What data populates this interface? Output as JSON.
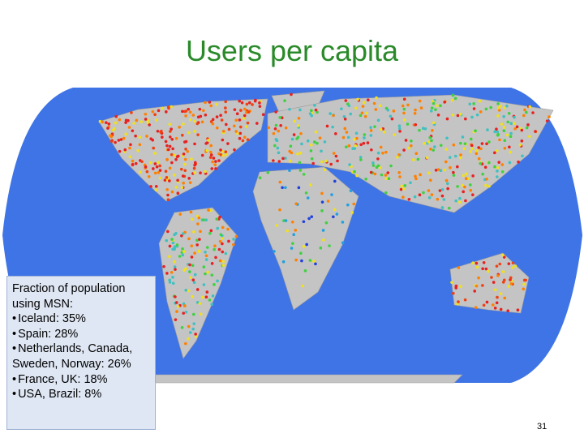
{
  "title": "Users per capita",
  "info_box": {
    "heading": "Fraction of population using MSN:",
    "items": [
      "Iceland: 35%",
      "Spain: 28%",
      "Netherlands, Canada, Sweden, Norway: 26%",
      "France, UK: 18%",
      "USA, Brazil: 8%"
    ]
  },
  "page_number": "31"
}
